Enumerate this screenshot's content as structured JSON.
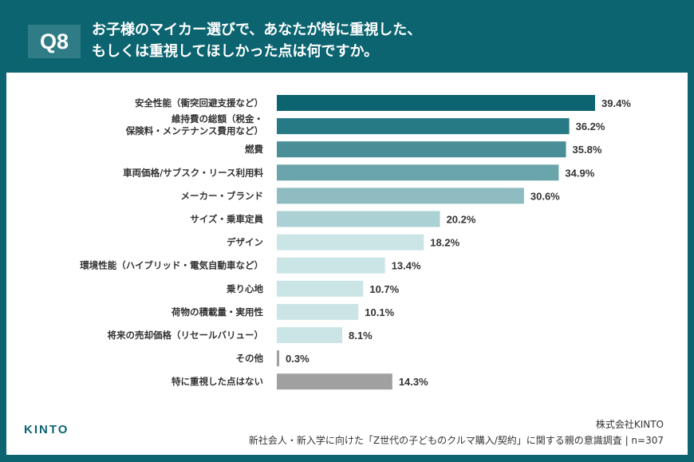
{
  "header": {
    "badge": "Q8",
    "title_line1": "お子様のマイカー選びで、あなたが特に重視した、",
    "title_line2": "もしくは重視してほしかった点は何ですか。"
  },
  "chart_data": {
    "type": "bar",
    "orientation": "horizontal",
    "categories": [
      "安全性能（衝突回避支援など）",
      "維持費の総額（税金・保険料・メンテナンス費用など）",
      "燃費",
      "車両価格/サブスク・リース利用料",
      "メーカー・ブランド",
      "サイズ・乗車定員",
      "デザイン",
      "環境性能（ハイブリッド・電気自動車など）",
      "乗り心地",
      "荷物の積載量・実用性",
      "将来の売却価格（リセールバリュー）",
      "その他",
      "特に重視した点はない"
    ],
    "category_lines": [
      [
        "安全性能（衝突回避支援など）"
      ],
      [
        "維持費の総額（税金・",
        "保険料・メンテナンス費用など）"
      ],
      [
        "燃費"
      ],
      [
        "車両価格/サブスク・リース利用料"
      ],
      [
        "メーカー・ブランド"
      ],
      [
        "サイズ・乗車定員"
      ],
      [
        "デザイン"
      ],
      [
        "環境性能（ハイブリッド・電気自動車など）"
      ],
      [
        "乗り心地"
      ],
      [
        "荷物の積載量・実用性"
      ],
      [
        "将来の売却価格（リセールバリュー）"
      ],
      [
        "その他"
      ],
      [
        "特に重視した点はない"
      ]
    ],
    "values": [
      39.4,
      36.2,
      35.8,
      34.9,
      30.6,
      20.2,
      18.2,
      13.4,
      10.7,
      10.1,
      8.1,
      0.3,
      14.3
    ],
    "value_labels": [
      "39.4%",
      "36.2%",
      "35.8%",
      "34.9%",
      "30.6%",
      "20.2%",
      "18.2%",
      "13.4%",
      "10.7%",
      "10.1%",
      "8.1%",
      "0.3%",
      "14.3%"
    ],
    "colors": [
      "#0b6470",
      "#267a85",
      "#4a8f98",
      "#6aa5ac",
      "#8fbcc1",
      "#acd1d4",
      "#cbe5e7",
      "#cbe5e7",
      "#cbe5e7",
      "#cbe5e7",
      "#cbe5e7",
      "#a0a0a0",
      "#a0a0a0"
    ],
    "unit": "%",
    "grid": false,
    "legend": "none"
  },
  "footer": {
    "logo": "KINTO",
    "company": "株式会社KINTO",
    "source": "新社会人・新入学に向けた「Z世代の子どものクルマ購入/契約」に関する親の意識調査 | n=307"
  }
}
